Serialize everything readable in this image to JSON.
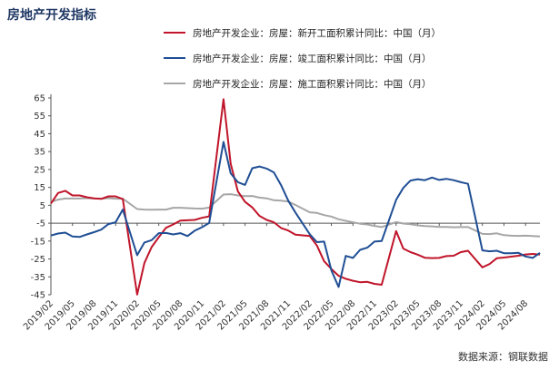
{
  "title": "房地产开发指标",
  "source": "数据来源：钢联数据",
  "colors": {
    "new_start": "#c0152a",
    "completed": "#1f4e94",
    "construction": "#a6a6a6"
  },
  "chart_data": {
    "type": "line",
    "title": "房地产开发指标",
    "xlabel": "",
    "ylabel": "",
    "ylim": [
      -45,
      65
    ],
    "yticks": [
      -45,
      -35,
      -25,
      -15,
      -5,
      5,
      15,
      25,
      35,
      45,
      55,
      65
    ],
    "x_tick_labels": [
      "2019/02",
      "2019/05",
      "2019/08",
      "2019/11",
      "2020/02",
      "2020/05",
      "2020/08",
      "2020/11",
      "2021/02",
      "2021/05",
      "2021/08",
      "2021/11",
      "2022/02",
      "2022/05",
      "2022/08",
      "2022/11",
      "2023/02",
      "2023/05",
      "2023/08",
      "2023/11",
      "2024/02",
      "2024/05",
      "2024/08"
    ],
    "x": [
      "2019/02",
      "2019/03",
      "2019/04",
      "2019/05",
      "2019/06",
      "2019/07",
      "2019/08",
      "2019/09",
      "2019/10",
      "2019/11",
      "2019/12",
      "2020/01",
      "2020/02",
      "2020/03",
      "2020/04",
      "2020/05",
      "2020/06",
      "2020/07",
      "2020/08",
      "2020/09",
      "2020/10",
      "2020/11",
      "2020/12",
      "2021/01",
      "2021/02",
      "2021/03",
      "2021/04",
      "2021/05",
      "2021/06",
      "2021/07",
      "2021/08",
      "2021/09",
      "2021/10",
      "2021/11",
      "2021/12",
      "2022/01",
      "2022/02",
      "2022/03",
      "2022/04",
      "2022/05",
      "2022/06",
      "2022/07",
      "2022/08",
      "2022/09",
      "2022/10",
      "2022/11",
      "2022/12",
      "2023/01",
      "2023/02",
      "2023/03",
      "2023/04",
      "2023/05",
      "2023/06",
      "2023/07",
      "2023/08",
      "2023/09",
      "2023/10",
      "2023/11",
      "2023/12",
      "2024/01",
      "2024/02",
      "2024/03",
      "2024/04",
      "2024/05",
      "2024/06",
      "2024/07",
      "2024/08",
      "2024/09",
      "2024/10"
    ],
    "grid": false,
    "legend": "top",
    "series": [
      {
        "name": "房地产开发企业：房屋：新开工面积累计同比：中国（月）",
        "color": "#c0152a",
        "values": [
          6,
          11.9,
          13.1,
          10.5,
          10.5,
          9.5,
          8.9,
          8.6,
          10,
          10,
          8.5,
          null,
          -44.9,
          -27.2,
          -18.4,
          -12.8,
          -7.6,
          -5.7,
          -3.6,
          -3.4,
          -3.2,
          -2,
          -1.2,
          null,
          64.3,
          28.2,
          12.8,
          6.9,
          3.8,
          -0.9,
          -3.2,
          -4.5,
          -7.7,
          -9.1,
          -11.4,
          null,
          -12.2,
          -17.5,
          -26.3,
          -30.6,
          -34.4,
          -36.1,
          -37.2,
          -38,
          -37.8,
          -38.9,
          -39.4,
          null,
          -9.4,
          -19.2,
          -21.2,
          -22.6,
          -24.3,
          -24.5,
          -24.4,
          -23.4,
          -23.2,
          -21.2,
          -20.4,
          null,
          -29.7,
          -27.8,
          -24.6,
          -24.2,
          -23.7,
          -23.2,
          -22.5,
          -22.2,
          -22.6
        ]
      },
      {
        "name": "房地产开发企业：房屋：竣工面积累计同比：中国（月）",
        "color": "#1f4e94",
        "values": [
          -11.9,
          -10.8,
          -10.3,
          -12.4,
          -12.7,
          -11.3,
          -10,
          -8.6,
          -5.5,
          -4.5,
          2.6,
          null,
          -22.9,
          -15.8,
          -14.5,
          -10.6,
          -10.5,
          -11.3,
          -10.6,
          -12.2,
          -9.2,
          -7.3,
          -4.9,
          null,
          40.4,
          22.9,
          17.9,
          16.4,
          25.7,
          26.7,
          25.5,
          23.4,
          16.3,
          7.6,
          1,
          null,
          -11.2,
          -15.6,
          -15.3,
          -31.4,
          -40.7,
          -23.3,
          -24.4,
          -19.9,
          -18.7,
          -15.3,
          -15,
          null,
          8,
          14.7,
          18.8,
          19.6,
          19,
          20.5,
          19.2,
          19.8,
          19,
          17.9,
          17,
          null,
          -20.2,
          -20.7,
          -20.4,
          -21.8,
          -21.8,
          -21.6,
          -23.6,
          -24.4,
          -21.6
        ]
      },
      {
        "name": "房地产开发企业：房屋：施工面积累计同比：中国（月）",
        "color": "#a6a6a6",
        "values": [
          6.8,
          8.2,
          8.8,
          8.8,
          8.8,
          9,
          8.8,
          8.7,
          9,
          8.7,
          8.7,
          null,
          2.9,
          2.6,
          2.5,
          2.6,
          2.6,
          3.6,
          3.6,
          3.4,
          3.2,
          3.1,
          3.7,
          null,
          11,
          11.2,
          10.5,
          10.1,
          10.2,
          9.3,
          8.9,
          7.8,
          7.6,
          7.1,
          5.2,
          null,
          1.1,
          0.7,
          -0.5,
          -1.3,
          -2.8,
          -3.7,
          -4.5,
          -5.3,
          -5.7,
          -6.5,
          -7.2,
          null,
          -4.4,
          -5.2,
          -5.6,
          -6.2,
          -6.6,
          -6.8,
          -7.1,
          -7.1,
          -7.3,
          -7.2,
          -7.2,
          null,
          -11,
          -11.1,
          -10.7,
          -11.7,
          -12,
          -12.1,
          -12.0,
          -12.2,
          -12.4
        ]
      }
    ]
  }
}
